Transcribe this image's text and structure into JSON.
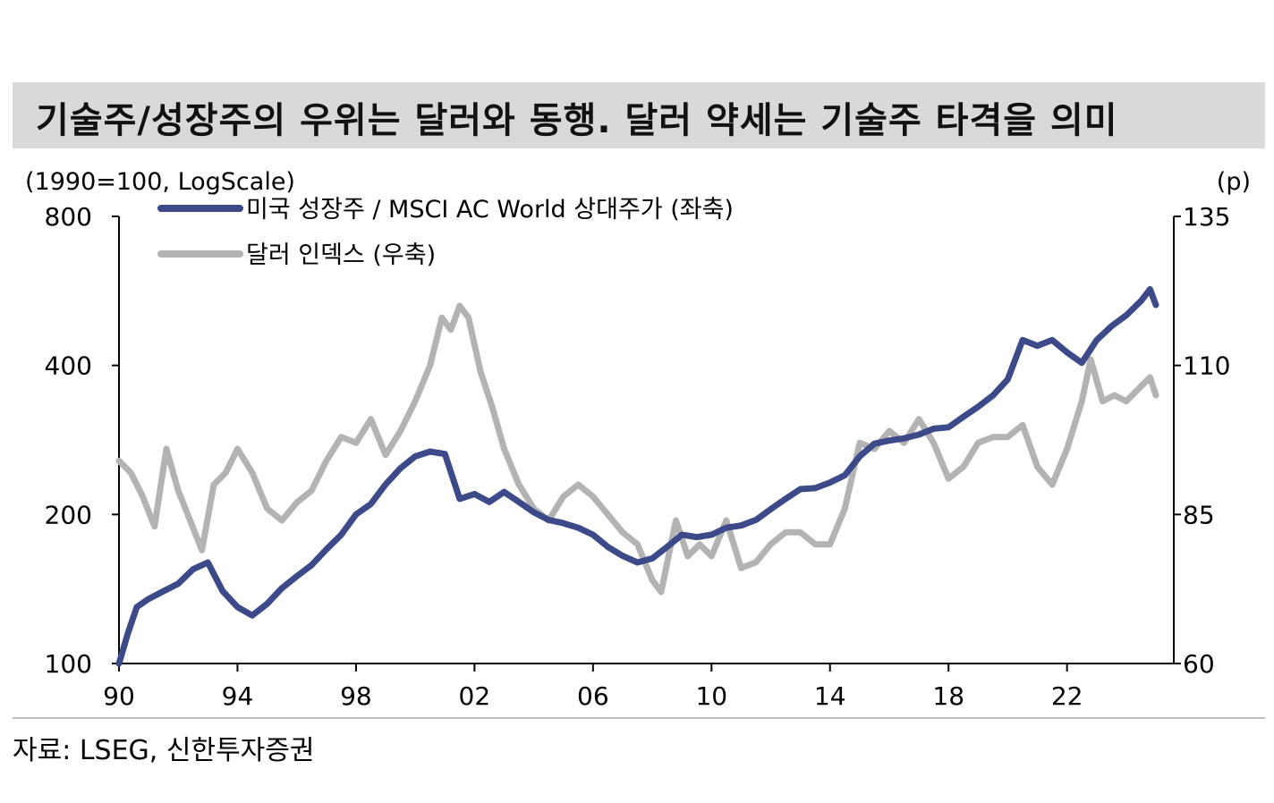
{
  "title": "기술주/성장주의 우위는 달러와 동행. 달러 약세는 기술주 타격을 의미",
  "source": "자료: LSEG, 신한투자증권",
  "chart_data": {
    "type": "line",
    "left_axis_label": "(1990=100, LogScale)",
    "right_axis_label": "(p)",
    "left_axis": {
      "scale": "log",
      "range": [
        100,
        800
      ],
      "ticks": [
        "800",
        "400",
        "200",
        "100"
      ],
      "tick_values": [
        800,
        400,
        200,
        100
      ]
    },
    "right_axis": {
      "scale": "linear",
      "range": [
        60,
        135
      ],
      "ticks": [
        "135",
        "110",
        "85",
        "60"
      ],
      "tick_values": [
        135,
        110,
        85,
        60
      ]
    },
    "x_axis": {
      "range": [
        1990,
        2025
      ],
      "ticks": [
        "90",
        "94",
        "98",
        "02",
        "06",
        "10",
        "14",
        "18",
        "22"
      ],
      "tick_values": [
        1990,
        1994,
        1998,
        2002,
        2006,
        2010,
        2014,
        2018,
        2022
      ]
    },
    "legend_position": "top-left",
    "series": [
      {
        "name": "미국 성장주 / MSCI AC World 상대주가 (좌축)",
        "axis": "left",
        "color": "#3d4a8a",
        "x": [
          1990.0,
          1990.3,
          1990.6,
          1991.0,
          1991.5,
          1992.0,
          1992.5,
          1993.0,
          1993.5,
          1994.0,
          1994.5,
          1995.0,
          1995.5,
          1996.0,
          1996.5,
          1997.0,
          1997.5,
          1998.0,
          1998.5,
          1999.0,
          1999.5,
          2000.0,
          2000.5,
          2001.0,
          2001.5,
          2002.0,
          2002.5,
          2003.0,
          2003.5,
          2004.0,
          2004.5,
          2005.0,
          2005.5,
          2006.0,
          2006.5,
          2007.0,
          2007.5,
          2008.0,
          2008.5,
          2009.0,
          2009.5,
          2010.0,
          2010.5,
          2011.0,
          2011.5,
          2012.0,
          2012.5,
          2013.0,
          2013.5,
          2014.0,
          2014.5,
          2015.0,
          2015.5,
          2016.0,
          2016.5,
          2017.0,
          2017.5,
          2018.0,
          2018.5,
          2019.0,
          2019.5,
          2020.0,
          2020.5,
          2021.0,
          2021.5,
          2022.0,
          2022.5,
          2023.0,
          2023.5,
          2024.0,
          2024.5,
          2024.8,
          2025.0
        ],
        "values": [
          100,
          115,
          130,
          135,
          140,
          145,
          155,
          160,
          140,
          130,
          125,
          132,
          142,
          150,
          158,
          170,
          182,
          200,
          210,
          230,
          248,
          262,
          268,
          265,
          215,
          220,
          212,
          222,
          212,
          202,
          195,
          192,
          188,
          182,
          172,
          165,
          160,
          163,
          172,
          182,
          180,
          182,
          188,
          190,
          195,
          205,
          215,
          225,
          226,
          232,
          240,
          262,
          278,
          282,
          285,
          290,
          298,
          300,
          315,
          330,
          348,
          375,
          450,
          438,
          450,
          425,
          405,
          450,
          480,
          505,
          540,
          570,
          530
        ]
      },
      {
        "name": "달러 인덱스 (우축)",
        "axis": "right",
        "color": "#b3b3b3",
        "x": [
          1990.0,
          1990.4,
          1990.8,
          1991.2,
          1991.6,
          1992.0,
          1992.4,
          1992.8,
          1993.2,
          1993.6,
          1994.0,
          1994.5,
          1995.0,
          1995.5,
          1996.0,
          1996.5,
          1997.0,
          1997.5,
          1998.0,
          1998.5,
          1999.0,
          1999.5,
          2000.0,
          2000.5,
          2000.9,
          2001.2,
          2001.5,
          2001.8,
          2002.2,
          2002.6,
          2003.0,
          2003.5,
          2004.0,
          2004.5,
          2005.0,
          2005.5,
          2006.0,
          2006.5,
          2007.0,
          2007.5,
          2008.0,
          2008.3,
          2008.8,
          2009.2,
          2009.6,
          2010.0,
          2010.5,
          2011.0,
          2011.5,
          2012.0,
          2012.5,
          2013.0,
          2013.5,
          2014.0,
          2014.5,
          2015.0,
          2015.5,
          2016.0,
          2016.5,
          2017.0,
          2017.5,
          2018.0,
          2018.5,
          2019.0,
          2019.5,
          2020.0,
          2020.5,
          2021.0,
          2021.5,
          2022.0,
          2022.5,
          2022.8,
          2023.2,
          2023.6,
          2024.0,
          2024.4,
          2024.8,
          2025.0
        ],
        "values": [
          94,
          92,
          88,
          83,
          96,
          89,
          84,
          79,
          90,
          92,
          96,
          92,
          86,
          84,
          87,
          89,
          94,
          98,
          97,
          101,
          95,
          99,
          104,
          110,
          118,
          116,
          120,
          118,
          109,
          103,
          96,
          90,
          86,
          84,
          88,
          90,
          88,
          85,
          82,
          80,
          74,
          72,
          84,
          78,
          80,
          78,
          84,
          76,
          77,
          80,
          82,
          82,
          80,
          80,
          86,
          97,
          96,
          99,
          97,
          101,
          97,
          91,
          93,
          97,
          98,
          98,
          100,
          93,
          90,
          96,
          104,
          111,
          104,
          105,
          104,
          106,
          108,
          105
        ]
      }
    ]
  }
}
